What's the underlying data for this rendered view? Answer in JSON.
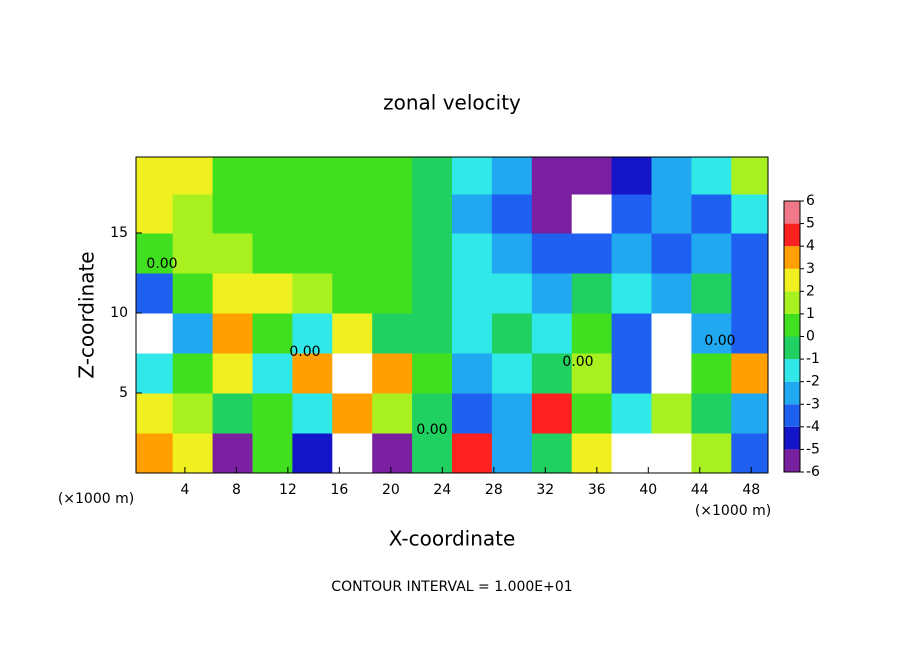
{
  "chart_data": {
    "type": "heatmap",
    "title": "zonal velocity",
    "x_label": "X-coordinate",
    "y_label": "Z-coordinate",
    "x_unit": "(×1000 m)",
    "x_unit_right": "(×1000 m)",
    "footer": "CONTOUR INTERVAL = 1.000E+01",
    "contour_labels": [
      "0.00",
      "0.00",
      "0.00",
      "0.00",
      "0.00"
    ],
    "x": [
      1.5,
      4.6,
      7.7,
      10.8,
      13.9,
      17,
      20.1,
      23.2,
      26.3,
      29.4,
      32.5,
      35.6,
      38.7,
      41.8,
      44.9,
      48
    ],
    "y": [
      1.25,
      3.75,
      6.25,
      8.75,
      11.25,
      13.75,
      16.25,
      18.625
    ],
    "values": [
      [
        4,
        3,
        -5,
        1,
        -4,
        7,
        -5,
        0,
        5,
        -2,
        0,
        3,
        7,
        7,
        2,
        -3
      ],
      [
        3,
        2,
        0,
        1,
        -1,
        4,
        2,
        0,
        -3,
        -2,
        5,
        1,
        -1,
        2,
        0,
        -2
      ],
      [
        -1,
        1,
        3,
        -1,
        4,
        7,
        4,
        1,
        -2,
        -1,
        0,
        2,
        -3,
        -7,
        1,
        4
      ],
      [
        -7,
        -2,
        4,
        1,
        -1,
        3,
        0,
        0,
        -1,
        0,
        -1,
        1,
        -3,
        -7,
        -2,
        -3
      ],
      [
        -3,
        1,
        3,
        3,
        2,
        1,
        1,
        0,
        -1,
        -1,
        -2,
        0,
        -1,
        -2,
        0,
        -3
      ],
      [
        1,
        2,
        2,
        1,
        1,
        1,
        1,
        0,
        -1,
        -2,
        -3,
        -3,
        -2,
        -3,
        -2,
        -3
      ],
      [
        3,
        2,
        1,
        1,
        1,
        1,
        1,
        0,
        -2,
        -3,
        -5,
        -7,
        -3,
        -2,
        -3,
        -1
      ],
      [
        3,
        3,
        1,
        1,
        1,
        1,
        1,
        0,
        -1,
        -2,
        -5,
        -6,
        -4,
        -2,
        -1,
        2
      ]
    ],
    "xlim": [
      0.2,
      49.3
    ],
    "ylim": [
      0,
      19.75
    ],
    "xticks": [
      4,
      8,
      12,
      16,
      20,
      24,
      28,
      32,
      36,
      40,
      44,
      48
    ],
    "yticks": [
      5,
      10,
      15
    ],
    "levels": [
      -6,
      -5,
      -4,
      -3,
      -2,
      -1,
      0,
      1,
      2,
      3,
      4,
      5,
      6
    ],
    "colors": [
      "#7a1fa0",
      "#1414c8",
      "#2060f0",
      "#20a8f0",
      "#30e8e8",
      "#20d060",
      "#40e020",
      "#a8f020",
      "#f0f020",
      "#ffa000",
      "#ff2020",
      "#f07888"
    ],
    "out_of_range_color": "#ffffff"
  }
}
